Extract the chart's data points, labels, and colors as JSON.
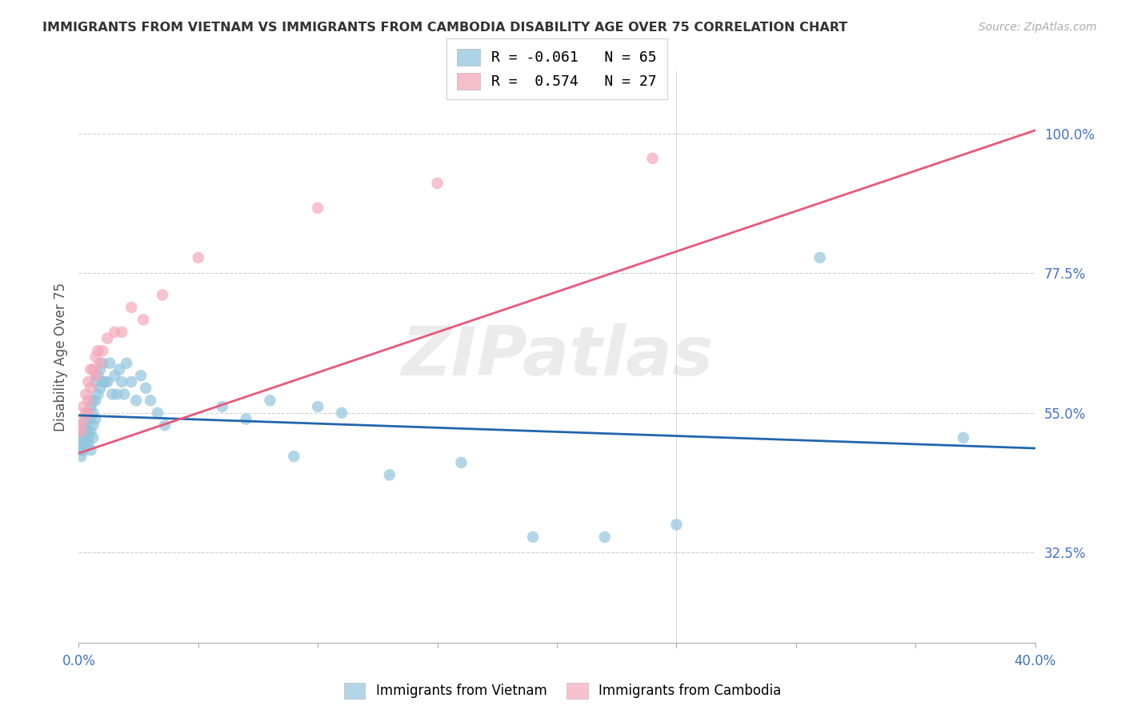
{
  "title": "IMMIGRANTS FROM VIETNAM VS IMMIGRANTS FROM CAMBODIA DISABILITY AGE OVER 75 CORRELATION CHART",
  "source": "Source: ZipAtlas.com",
  "ylabel": "Disability Age Over 75",
  "ytick_labels": [
    "100.0%",
    "77.5%",
    "55.0%",
    "32.5%"
  ],
  "ytick_values": [
    1.0,
    0.775,
    0.55,
    0.325
  ],
  "xmin": 0.0,
  "xmax": 0.4,
  "ymin": 0.18,
  "ymax": 1.1,
  "color_blue": "#92c5de",
  "color_pink": "#f4a7b9",
  "color_trendline_blue": "#2166ac",
  "color_trendline_pink": "#e8587a",
  "watermark": "ZIPatlas",
  "vietnam_x": [
    0.001,
    0.001,
    0.001,
    0.001,
    0.002,
    0.002,
    0.002,
    0.002,
    0.002,
    0.003,
    0.003,
    0.003,
    0.003,
    0.004,
    0.004,
    0.004,
    0.004,
    0.004,
    0.005,
    0.005,
    0.005,
    0.005,
    0.006,
    0.006,
    0.006,
    0.006,
    0.007,
    0.007,
    0.007,
    0.008,
    0.008,
    0.009,
    0.009,
    0.01,
    0.01,
    0.011,
    0.012,
    0.013,
    0.014,
    0.015,
    0.016,
    0.017,
    0.018,
    0.019,
    0.02,
    0.022,
    0.024,
    0.026,
    0.028,
    0.03,
    0.033,
    0.036,
    0.06,
    0.07,
    0.08,
    0.09,
    0.1,
    0.11,
    0.13,
    0.16,
    0.19,
    0.22,
    0.25,
    0.31,
    0.37
  ],
  "vietnam_y": [
    0.51,
    0.5,
    0.49,
    0.48,
    0.53,
    0.52,
    0.51,
    0.5,
    0.49,
    0.54,
    0.53,
    0.52,
    0.5,
    0.55,
    0.54,
    0.52,
    0.51,
    0.5,
    0.56,
    0.54,
    0.52,
    0.49,
    0.57,
    0.55,
    0.53,
    0.51,
    0.6,
    0.57,
    0.54,
    0.61,
    0.58,
    0.62,
    0.59,
    0.63,
    0.6,
    0.6,
    0.6,
    0.63,
    0.58,
    0.61,
    0.58,
    0.62,
    0.6,
    0.58,
    0.63,
    0.6,
    0.57,
    0.61,
    0.59,
    0.57,
    0.55,
    0.53,
    0.56,
    0.54,
    0.57,
    0.48,
    0.56,
    0.55,
    0.45,
    0.47,
    0.35,
    0.35,
    0.37,
    0.8,
    0.51
  ],
  "cambodia_x": [
    0.001,
    0.001,
    0.002,
    0.002,
    0.003,
    0.003,
    0.004,
    0.004,
    0.004,
    0.005,
    0.005,
    0.006,
    0.007,
    0.007,
    0.008,
    0.009,
    0.01,
    0.012,
    0.015,
    0.018,
    0.022,
    0.027,
    0.035,
    0.05,
    0.1,
    0.15,
    0.24
  ],
  "cambodia_y": [
    0.53,
    0.52,
    0.56,
    0.54,
    0.58,
    0.55,
    0.6,
    0.57,
    0.55,
    0.62,
    0.59,
    0.62,
    0.64,
    0.61,
    0.65,
    0.63,
    0.65,
    0.67,
    0.68,
    0.68,
    0.72,
    0.7,
    0.74,
    0.8,
    0.88,
    0.92,
    0.96
  ],
  "trendline_blue_x0": 0.0,
  "trendline_blue_y0": 0.546,
  "trendline_blue_x1": 0.4,
  "trendline_blue_y1": 0.493,
  "trendline_pink_x0": 0.0,
  "trendline_pink_y0": 0.485,
  "trendline_pink_x1": 0.4,
  "trendline_pink_y1": 1.005
}
